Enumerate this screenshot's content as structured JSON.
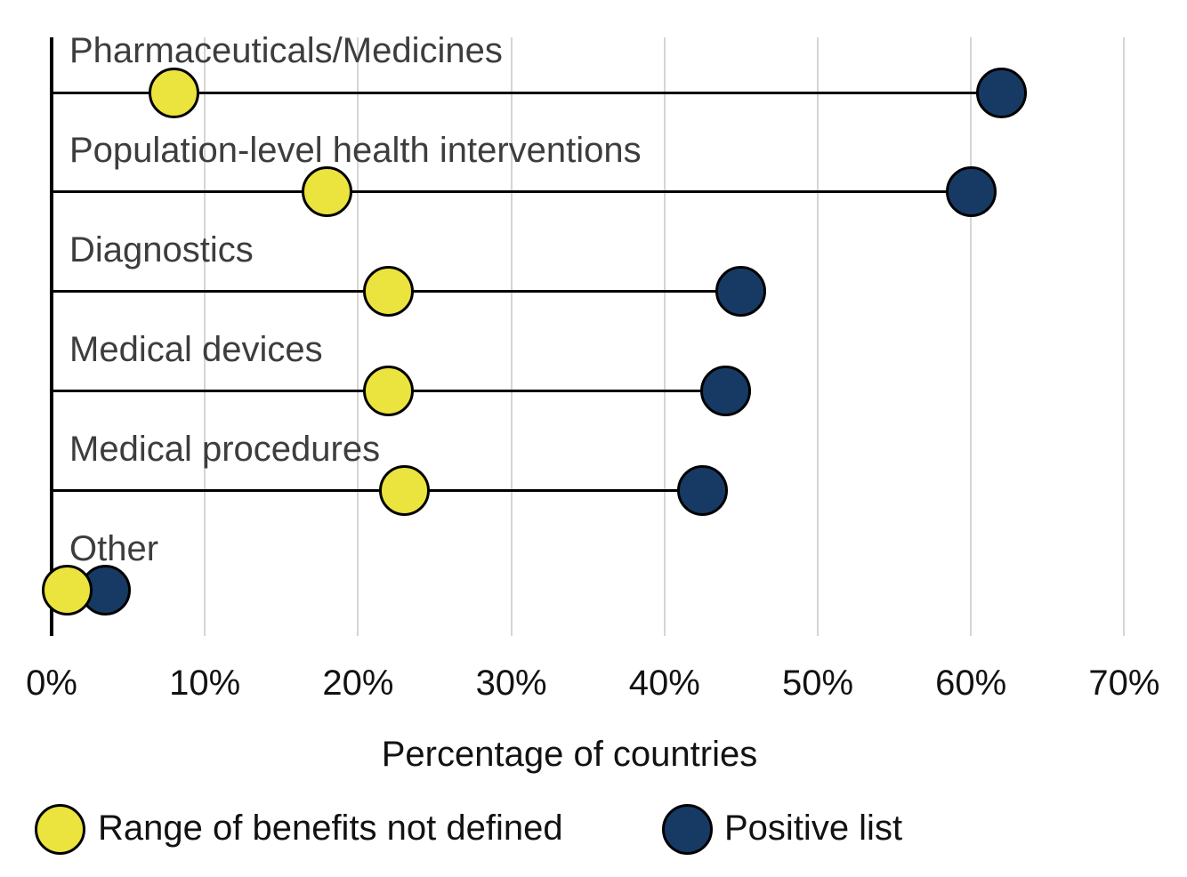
{
  "chart_data": {
    "type": "dumbbell",
    "title": "",
    "categories": [
      "Pharmaceuticals/Medicines",
      "Population-level health interventions",
      "Diagnostics",
      "Medical devices",
      "Medical procedures",
      "Other"
    ],
    "series": [
      {
        "name": "Range of benefits not defined",
        "color": "#ebe33e",
        "values": [
          8,
          18,
          22,
          22,
          23,
          1
        ]
      },
      {
        "name": "Positive list",
        "color": "#173a64",
        "values": [
          62,
          60,
          45,
          44,
          42.5,
          3.5
        ]
      }
    ],
    "xlabel": "Percentage of countries",
    "x_ticks": [
      "0%",
      "10%",
      "20%",
      "30%",
      "40%",
      "50%",
      "60%",
      "70%"
    ],
    "xlim": [
      0,
      70
    ],
    "grid": "vertical",
    "gridline_color": "#d5d5d5",
    "marker_outline_color": "#000000",
    "connector_color": "#000000",
    "legend_position": "bottom"
  }
}
